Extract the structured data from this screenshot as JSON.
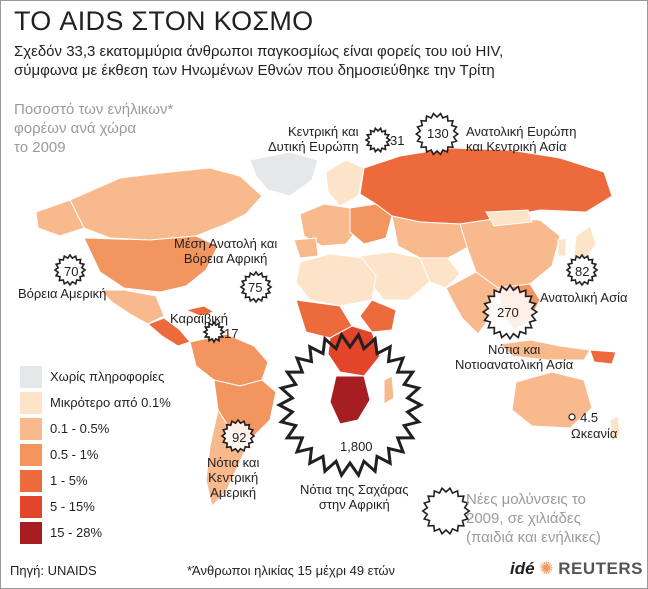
{
  "header": {
    "title": "ΤΟ AIDS ΣΤΟΝ ΚΟΣΜΟ",
    "subtitle_line1": "Σχεδόν 33,3 εκατομμύρια άνθρωποι παγκοσμίως είναι φορείς του ιού HIV,",
    "subtitle_line2": "σύμφωνα με έκθεση των Ηνωμένων Εθνών που δημοσιεύθηκε την Τρίτη",
    "note_line1": "Ποσοστό των ενήλικων*",
    "note_line2": "φορέων ανά χώρα",
    "note_line3": "το 2009"
  },
  "regions": [
    {
      "id": "north_america",
      "name_line1": "Βόρεια Αμερική",
      "name_line2": "",
      "value": "70"
    },
    {
      "id": "caribbean",
      "name_line1": "Καραϊβική",
      "name_line2": "",
      "value": "17"
    },
    {
      "id": "south_central_america",
      "name_line1": "Νότια και",
      "name_line2": "Κεντρική",
      "name_line3": "Αμερική",
      "value": "92"
    },
    {
      "id": "central_western_europe",
      "name_line1": "Κεντρική και",
      "name_line2": "Δυτική Ευρώπη",
      "value": "31"
    },
    {
      "id": "middle_east_north_africa",
      "name_line1": "Μέση Ανατολή και",
      "name_line2": "Βόρεια Αφρική",
      "value": "75"
    },
    {
      "id": "eastern_europe_central_asia",
      "name_line1": "Ανατολική Ευρώπη",
      "name_line2": "και Κεντρική Ασία",
      "value": "130"
    },
    {
      "id": "east_asia",
      "name_line1": "Ανατολική Ασία",
      "name_line2": "",
      "value": "82"
    },
    {
      "id": "south_southeast_asia",
      "name_line1": "Νότια και",
      "name_line2": "Νοτιοανατολική Ασία",
      "value": "270"
    },
    {
      "id": "sub_saharan_africa",
      "name_line1": "Νότια της Σαχάρας",
      "name_line2": "στην Αφρική",
      "value": "1,800"
    },
    {
      "id": "oceania",
      "name_line1": "Ωκεανία",
      "name_line2": "",
      "value": "4.5"
    }
  ],
  "legend": {
    "items": [
      {
        "label": "Χωρίς πληροφορίες",
        "color": "#e6e7e8"
      },
      {
        "label": "Μικρότερο από 0.1%",
        "color": "#fde3c8"
      },
      {
        "label": "0.1 - 0.5%",
        "color": "#f8b98d"
      },
      {
        "label": "0.5 - 1%",
        "color": "#f3955e"
      },
      {
        "label": "1 - 5%",
        "color": "#ec6a3b"
      },
      {
        "label": "5 - 15%",
        "color": "#e2452a"
      },
      {
        "label": "15 - 28%",
        "color": "#a71e22"
      }
    ],
    "new_infections_line1": "Νέες μολύνσεις το",
    "new_infections_line2": "2009, σε χιλιάδες",
    "new_infections_line3": "(παιδιά και ενήλικες)"
  },
  "footer": {
    "source": "Πηγή: UNAIDS",
    "footnote": "*Άνθρωποι ηλικίας 15 μέχρι 49 ετών",
    "logo_ide": "idé",
    "logo_reuters": "REUTERS"
  }
}
